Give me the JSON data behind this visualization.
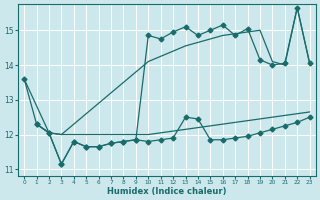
{
  "xlabel": "Humidex (Indice chaleur)",
  "bg_color": "#cce8ec",
  "grid_color": "#b8d8dc",
  "line_color": "#1a6b6b",
  "xlim": [
    -0.5,
    23.5
  ],
  "ylim": [
    10.8,
    15.75
  ],
  "yticks": [
    11,
    12,
    13,
    14,
    15
  ],
  "xticks": [
    0,
    1,
    2,
    3,
    4,
    5,
    6,
    7,
    8,
    9,
    10,
    11,
    12,
    13,
    14,
    15,
    16,
    17,
    18,
    19,
    20,
    21,
    22,
    23
  ],
  "series1_nomarker": {
    "x": [
      0,
      1,
      2,
      3,
      10,
      11,
      12,
      13,
      14,
      15,
      16,
      17,
      18,
      19,
      20,
      21,
      22,
      23
    ],
    "y": [
      13.6,
      12.3,
      12.05,
      12.0,
      12.0,
      12.05,
      12.1,
      12.15,
      12.2,
      12.25,
      12.3,
      12.35,
      12.4,
      12.45,
      12.5,
      12.55,
      12.6,
      12.65
    ]
  },
  "series2_nomarker": {
    "x": [
      0,
      2,
      3,
      10,
      11,
      12,
      13,
      14,
      15,
      16,
      17,
      18,
      19,
      20,
      21,
      22,
      23
    ],
    "y": [
      13.6,
      12.05,
      12.0,
      14.1,
      14.25,
      14.4,
      14.55,
      14.65,
      14.75,
      14.85,
      14.9,
      14.95,
      15.0,
      14.1,
      14.0,
      15.65,
      14.05
    ]
  },
  "series3_markers": {
    "x": [
      1,
      2,
      3,
      4,
      5,
      6,
      7,
      8,
      9,
      10,
      11,
      12,
      13,
      14,
      15,
      16,
      17,
      18,
      19,
      20,
      21,
      22,
      23
    ],
    "y": [
      12.3,
      12.05,
      11.15,
      11.8,
      11.65,
      11.65,
      11.75,
      11.8,
      11.85,
      14.85,
      14.75,
      14.95,
      15.1,
      14.85,
      15.0,
      15.15,
      14.85,
      15.05,
      14.15,
      14.0,
      14.05,
      15.65,
      14.05
    ]
  },
  "series4_markers": {
    "x": [
      1,
      2,
      3,
      4,
      5,
      6,
      7,
      8,
      9,
      10,
      11,
      12,
      13,
      14,
      15,
      16,
      17,
      18,
      19,
      20,
      21,
      22,
      23
    ],
    "y": [
      12.3,
      12.05,
      11.15,
      11.8,
      11.65,
      11.65,
      11.75,
      11.8,
      11.85,
      11.8,
      11.85,
      11.9,
      12.5,
      12.45,
      11.85,
      11.85,
      11.9,
      11.95,
      12.05,
      12.15,
      12.25,
      12.35,
      12.5
    ]
  }
}
